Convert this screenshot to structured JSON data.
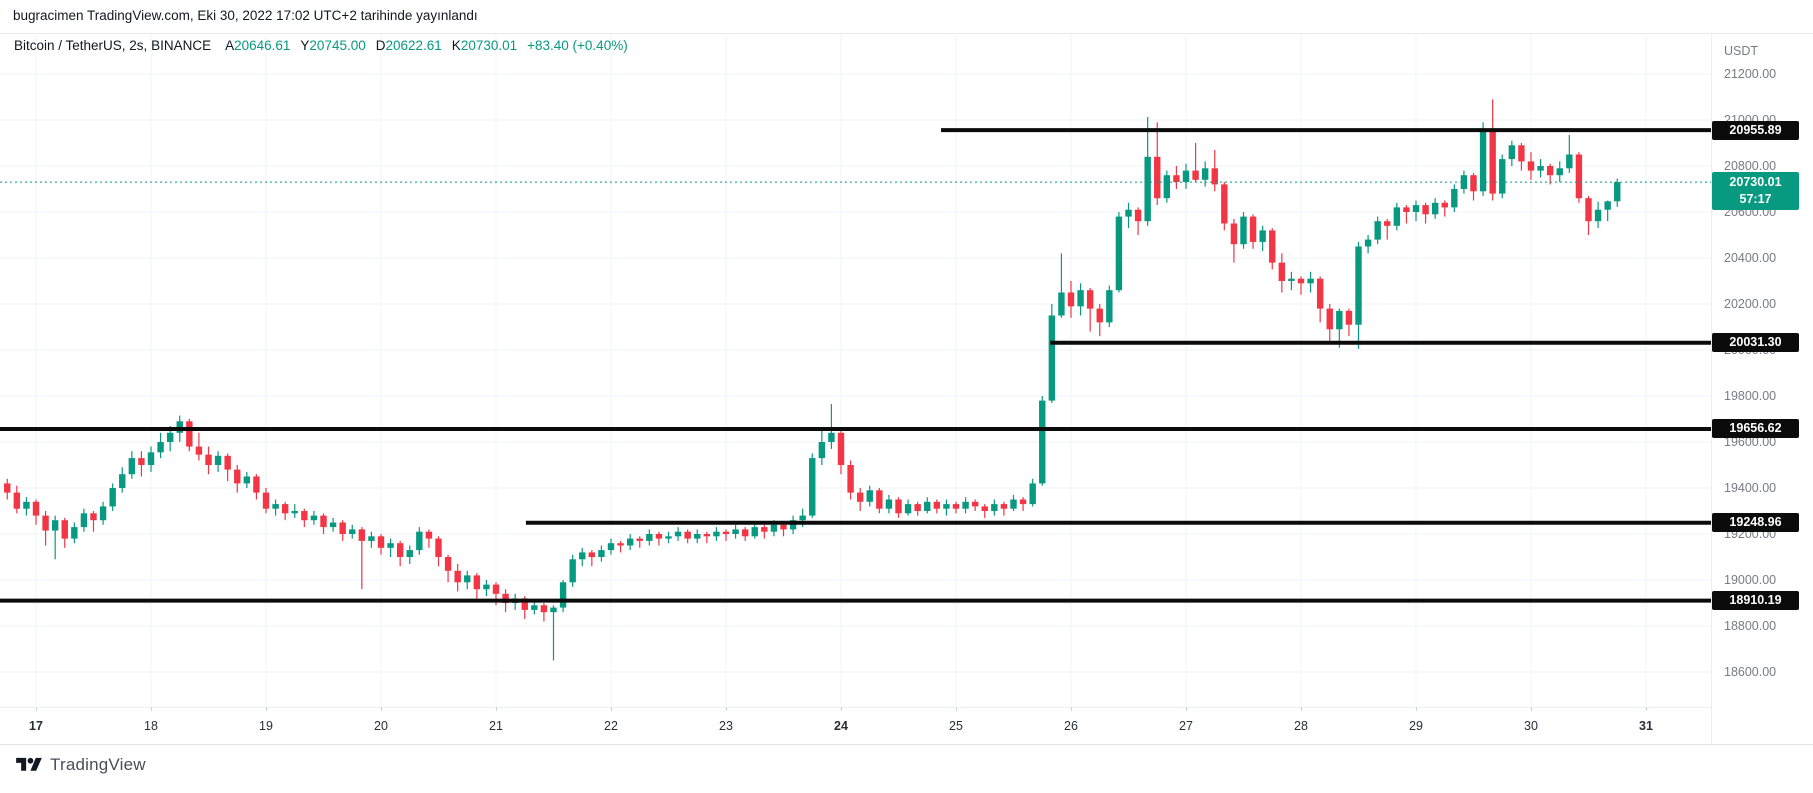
{
  "publish": {
    "line": "bugracimen TradingView.com, Eki 30, 2022 17:02 UTC+2 tarihinde yayınlandı"
  },
  "legend": {
    "symbol_title": "Bitcoin / TetherUS, 2s, BINANCE",
    "ohlc": [
      {
        "label": "A",
        "value": "20646.61"
      },
      {
        "label": "Y",
        "value": "20745.00"
      },
      {
        "label": "D",
        "value": "20622.61"
      },
      {
        "label": "K",
        "value": "20730.01"
      }
    ],
    "change": "+83.40 (+0.40%)"
  },
  "price_axis": {
    "currency": "USDT",
    "ticks": [
      {
        "label": "21200.00",
        "value": 21200
      },
      {
        "label": "21000.00",
        "value": 21000
      },
      {
        "label": "20800.00",
        "value": 20800
      },
      {
        "label": "20600.00",
        "value": 20600
      },
      {
        "label": "20400.00",
        "value": 20400
      },
      {
        "label": "20200.00",
        "value": 20200
      },
      {
        "label": "20000.00",
        "value": 20000
      },
      {
        "label": "19800.00",
        "value": 19800
      },
      {
        "label": "19600.00",
        "value": 19600
      },
      {
        "label": "19400.00",
        "value": 19400
      },
      {
        "label": "19200.00",
        "value": 19200
      },
      {
        "label": "19000.00",
        "value": 19000
      },
      {
        "label": "18800.00",
        "value": 18800
      },
      {
        "label": "18600.00",
        "value": 18600
      }
    ],
    "last_price_badge": {
      "price": "20730.01",
      "countdown": "57:17",
      "value": 20730.01
    }
  },
  "time_axis": {
    "labels": [
      {
        "text": "17",
        "day": 17,
        "bold": true
      },
      {
        "text": "18",
        "day": 18,
        "bold": false
      },
      {
        "text": "19",
        "day": 19,
        "bold": false
      },
      {
        "text": "20",
        "day": 20,
        "bold": false
      },
      {
        "text": "21",
        "day": 21,
        "bold": false
      },
      {
        "text": "22",
        "day": 22,
        "bold": false
      },
      {
        "text": "23",
        "day": 23,
        "bold": false
      },
      {
        "text": "24",
        "day": 24,
        "bold": true
      },
      {
        "text": "25",
        "day": 25,
        "bold": false
      },
      {
        "text": "26",
        "day": 26,
        "bold": false
      },
      {
        "text": "27",
        "day": 27,
        "bold": false
      },
      {
        "text": "28",
        "day": 28,
        "bold": false
      },
      {
        "text": "29",
        "day": 29,
        "bold": false
      },
      {
        "text": "30",
        "day": 30,
        "bold": false
      },
      {
        "text": "31",
        "day": 31,
        "bold": true
      }
    ]
  },
  "levels": [
    {
      "label": "20955.89",
      "price": 20955.89,
      "start_day": 24.87
    },
    {
      "label": "20031.30",
      "price": 20031.3,
      "start_day": 25.82
    },
    {
      "label": "19656.62",
      "price": 19656.62,
      "start_day": null
    },
    {
      "label": "19248.96",
      "price": 19248.96,
      "start_day": 21.26
    },
    {
      "label": "18910.19",
      "price": 18910.19,
      "start_day": null
    }
  ],
  "attribution": {
    "logo_text": "TradingView"
  },
  "colors": {
    "up": "#089981",
    "down": "#f23645",
    "grid": "#f0f3fa",
    "axis_text": "#787b86",
    "dark_text": "#131722",
    "teal_text": "#089981",
    "level_line": "#0b0b0b",
    "pill_bg": "#0b0b0b",
    "pill_text": "#ffffff",
    "badge_bg": "#089981",
    "badge_text": "#ffffff",
    "border": "#e0e3eb"
  },
  "chart_data": {
    "type": "candlestick",
    "title": "Bitcoin / TetherUS",
    "exchange": "BINANCE",
    "interval": "2 hours (2s)",
    "x_unit": "day of October 2022",
    "start_day": 16.75,
    "step_day": 0.0833333,
    "price_line": 20730.01,
    "visible_price_ticks": [
      18600,
      21200
    ],
    "grid": true,
    "levels": [
      20955.89,
      20031.3,
      19656.62,
      19248.96,
      18910.19
    ],
    "candles": [
      [
        19420,
        19440,
        19350,
        19380
      ],
      [
        19380,
        19410,
        19290,
        19310
      ],
      [
        19310,
        19360,
        19280,
        19340
      ],
      [
        19340,
        19350,
        19240,
        19280
      ],
      [
        19280,
        19300,
        19150,
        19215
      ],
      [
        19215,
        19280,
        19090,
        19260
      ],
      [
        19260,
        19270,
        19140,
        19180
      ],
      [
        19180,
        19250,
        19160,
        19230
      ],
      [
        19230,
        19310,
        19210,
        19290
      ],
      [
        19290,
        19300,
        19210,
        19260
      ],
      [
        19260,
        19340,
        19240,
        19320
      ],
      [
        19320,
        19420,
        19300,
        19400
      ],
      [
        19400,
        19490,
        19380,
        19460
      ],
      [
        19460,
        19560,
        19440,
        19530
      ],
      [
        19530,
        19560,
        19450,
        19500
      ],
      [
        19500,
        19580,
        19470,
        19555
      ],
      [
        19555,
        19640,
        19530,
        19600
      ],
      [
        19600,
        19670,
        19560,
        19640
      ],
      [
        19640,
        19715,
        19600,
        19690
      ],
      [
        19690,
        19700,
        19560,
        19580
      ],
      [
        19580,
        19640,
        19520,
        19545
      ],
      [
        19545,
        19580,
        19460,
        19500
      ],
      [
        19500,
        19560,
        19470,
        19540
      ],
      [
        19540,
        19550,
        19430,
        19480
      ],
      [
        19480,
        19500,
        19380,
        19420
      ],
      [
        19420,
        19470,
        19400,
        19450
      ],
      [
        19450,
        19460,
        19350,
        19380
      ],
      [
        19380,
        19400,
        19290,
        19310
      ],
      [
        19310,
        19350,
        19280,
        19330
      ],
      [
        19330,
        19340,
        19260,
        19290
      ],
      [
        19290,
        19330,
        19270,
        19300
      ],
      [
        19300,
        19310,
        19230,
        19260
      ],
      [
        19260,
        19300,
        19240,
        19280
      ],
      [
        19280,
        19290,
        19200,
        19230
      ],
      [
        19230,
        19270,
        19210,
        19250
      ],
      [
        19250,
        19260,
        19170,
        19200
      ],
      [
        19200,
        19240,
        19180,
        19220
      ],
      [
        19220,
        19230,
        18960,
        19170
      ],
      [
        19170,
        19210,
        19140,
        19190
      ],
      [
        19190,
        19200,
        19110,
        19140
      ],
      [
        19140,
        19180,
        19100,
        19160
      ],
      [
        19160,
        19170,
        19060,
        19100
      ],
      [
        19100,
        19150,
        19070,
        19130
      ],
      [
        19130,
        19230,
        19110,
        19210
      ],
      [
        19210,
        19220,
        19140,
        19180
      ],
      [
        19180,
        19190,
        19060,
        19100
      ],
      [
        19100,
        19110,
        18990,
        19040
      ],
      [
        19040,
        19070,
        18950,
        18990
      ],
      [
        18990,
        19040,
        18960,
        19020
      ],
      [
        19020,
        19030,
        18910,
        18960
      ],
      [
        18960,
        19000,
        18930,
        18980
      ],
      [
        18980,
        18990,
        18890,
        18940
      ],
      [
        18940,
        18960,
        18860,
        18900
      ],
      [
        18900,
        18940,
        18870,
        18920
      ],
      [
        18920,
        18930,
        18830,
        18870
      ],
      [
        18870,
        18910,
        18850,
        18890
      ],
      [
        18890,
        18900,
        18820,
        18860
      ],
      [
        18860,
        18890,
        18650,
        18880
      ],
      [
        18880,
        19000,
        18860,
        18990
      ],
      [
        18990,
        19110,
        18970,
        19090
      ],
      [
        19090,
        19140,
        19060,
        19120
      ],
      [
        19120,
        19130,
        19060,
        19100
      ],
      [
        19100,
        19150,
        19080,
        19130
      ],
      [
        19130,
        19180,
        19110,
        19160
      ],
      [
        19160,
        19170,
        19120,
        19150
      ],
      [
        19150,
        19200,
        19130,
        19180
      ],
      [
        19180,
        19190,
        19140,
        19170
      ],
      [
        19170,
        19220,
        19150,
        19200
      ],
      [
        19200,
        19210,
        19150,
        19180
      ],
      [
        19180,
        19210,
        19160,
        19190
      ],
      [
        19190,
        19230,
        19170,
        19210
      ],
      [
        19210,
        19220,
        19160,
        19180
      ],
      [
        19180,
        19220,
        19160,
        19200
      ],
      [
        19200,
        19210,
        19160,
        19190
      ],
      [
        19190,
        19230,
        19170,
        19210
      ],
      [
        19210,
        19220,
        19170,
        19200
      ],
      [
        19200,
        19240,
        19180,
        19220
      ],
      [
        19220,
        19230,
        19170,
        19190
      ],
      [
        19190,
        19250,
        19180,
        19230
      ],
      [
        19230,
        19240,
        19180,
        19210
      ],
      [
        19210,
        19260,
        19190,
        19240
      ],
      [
        19240,
        19250,
        19190,
        19220
      ],
      [
        19220,
        19280,
        19200,
        19260
      ],
      [
        19260,
        19310,
        19230,
        19280
      ],
      [
        19280,
        19550,
        19270,
        19530
      ],
      [
        19530,
        19660,
        19500,
        19600
      ],
      [
        19600,
        19765,
        19570,
        19640
      ],
      [
        19640,
        19650,
        19460,
        19500
      ],
      [
        19500,
        19520,
        19350,
        19380
      ],
      [
        19380,
        19400,
        19300,
        19340
      ],
      [
        19340,
        19410,
        19320,
        19390
      ],
      [
        19390,
        19400,
        19290,
        19310
      ],
      [
        19310,
        19370,
        19290,
        19350
      ],
      [
        19350,
        19360,
        19270,
        19290
      ],
      [
        19290,
        19350,
        19280,
        19330
      ],
      [
        19330,
        19340,
        19280,
        19300
      ],
      [
        19300,
        19360,
        19290,
        19340
      ],
      [
        19340,
        19350,
        19290,
        19310
      ],
      [
        19310,
        19350,
        19280,
        19330
      ],
      [
        19330,
        19340,
        19290,
        19310
      ],
      [
        19310,
        19360,
        19290,
        19340
      ],
      [
        19340,
        19350,
        19300,
        19320
      ],
      [
        19320,
        19330,
        19270,
        19300
      ],
      [
        19300,
        19350,
        19280,
        19330
      ],
      [
        19330,
        19340,
        19280,
        19310
      ],
      [
        19310,
        19370,
        19300,
        19350
      ],
      [
        19350,
        19360,
        19300,
        19330
      ],
      [
        19330,
        19440,
        19320,
        19420
      ],
      [
        19420,
        19800,
        19410,
        19780
      ],
      [
        19780,
        20200,
        19770,
        20150
      ],
      [
        20150,
        20420,
        20140,
        20250
      ],
      [
        20250,
        20300,
        20140,
        20190
      ],
      [
        20190,
        20290,
        20150,
        20260
      ],
      [
        20260,
        20270,
        20080,
        20180
      ],
      [
        20180,
        20200,
        20060,
        20120
      ],
      [
        20120,
        20280,
        20100,
        20260
      ],
      [
        20260,
        20600,
        20250,
        20580
      ],
      [
        20580,
        20640,
        20530,
        20610
      ],
      [
        20610,
        20620,
        20500,
        20560
      ],
      [
        20560,
        21013,
        20540,
        20840
      ],
      [
        20840,
        20990,
        20630,
        20660
      ],
      [
        20660,
        20780,
        20640,
        20760
      ],
      [
        20760,
        20800,
        20700,
        20730
      ],
      [
        20730,
        20810,
        20700,
        20780
      ],
      [
        20780,
        20900,
        20730,
        20740
      ],
      [
        20740,
        20820,
        20710,
        20790
      ],
      [
        20790,
        20870,
        20690,
        20720
      ],
      [
        20720,
        20730,
        20520,
        20550
      ],
      [
        20550,
        20570,
        20380,
        20460
      ],
      [
        20460,
        20600,
        20440,
        20580
      ],
      [
        20580,
        20590,
        20440,
        20470
      ],
      [
        20470,
        20540,
        20430,
        20520
      ],
      [
        20520,
        20530,
        20350,
        20380
      ],
      [
        20380,
        20420,
        20250,
        20300
      ],
      [
        20300,
        20340,
        20260,
        20310
      ],
      [
        20310,
        20320,
        20240,
        20290
      ],
      [
        20290,
        20340,
        20250,
        20310
      ],
      [
        20310,
        20320,
        20120,
        20180
      ],
      [
        20180,
        20200,
        20030,
        20090
      ],
      [
        20090,
        20180,
        20010,
        20170
      ],
      [
        20170,
        20180,
        20060,
        20110
      ],
      [
        20110,
        20470,
        20005,
        20450
      ],
      [
        20450,
        20500,
        20420,
        20480
      ],
      [
        20480,
        20580,
        20460,
        20560
      ],
      [
        20560,
        20570,
        20480,
        20540
      ],
      [
        20540,
        20640,
        20520,
        20620
      ],
      [
        20620,
        20630,
        20550,
        20600
      ],
      [
        20600,
        20650,
        20560,
        20630
      ],
      [
        20630,
        20640,
        20550,
        20590
      ],
      [
        20590,
        20660,
        20570,
        20640
      ],
      [
        20640,
        20650,
        20580,
        20620
      ],
      [
        20620,
        20720,
        20600,
        20700
      ],
      [
        20700,
        20780,
        20680,
        20760
      ],
      [
        20760,
        20770,
        20650,
        20690
      ],
      [
        20690,
        20990,
        20670,
        20950
      ],
      [
        20950,
        21090,
        20650,
        20680
      ],
      [
        20680,
        20850,
        20660,
        20830
      ],
      [
        20830,
        20910,
        20800,
        20890
      ],
      [
        20890,
        20900,
        20780,
        20820
      ],
      [
        20820,
        20860,
        20740,
        20780
      ],
      [
        20780,
        20830,
        20750,
        20800
      ],
      [
        20800,
        20810,
        20720,
        20760
      ],
      [
        20760,
        20820,
        20730,
        20790
      ],
      [
        20790,
        20935,
        20770,
        20850
      ],
      [
        20850,
        20860,
        20640,
        20660
      ],
      [
        20660,
        20670,
        20500,
        20560
      ],
      [
        20560,
        20645,
        20530,
        20610
      ],
      [
        20610,
        20650,
        20560,
        20646.61
      ],
      [
        20646.61,
        20745,
        20622.61,
        20730.01
      ]
    ]
  }
}
